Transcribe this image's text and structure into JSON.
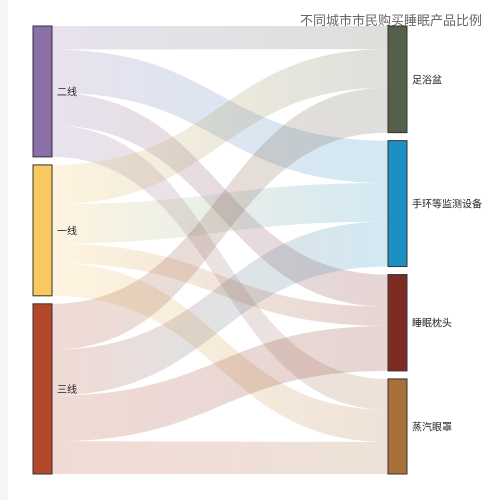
{
  "chart_data": {
    "type": "sankey",
    "title": "不同城市市民购买睡眠产品比例",
    "sources": [
      {
        "name": "二线",
        "color": "#8a6fa8"
      },
      {
        "name": "一线",
        "color": "#f9c95f"
      },
      {
        "name": "三线",
        "color": "#b5482b"
      }
    ],
    "targets": [
      {
        "name": "足浴盆",
        "color": "#55604a"
      },
      {
        "name": "手环等监测设备",
        "color": "#1e8fc2"
      },
      {
        "name": "睡眠枕头",
        "color": "#7e2c23"
      },
      {
        "name": "蒸汽眼罩",
        "color": "#a8703a"
      }
    ],
    "links": [
      {
        "source": "二线",
        "target": "足浴盆",
        "value": 18
      },
      {
        "source": "二线",
        "target": "手环等监测设备",
        "value": 33
      },
      {
        "source": "二线",
        "target": "睡眠枕头",
        "value": 25
      },
      {
        "source": "二线",
        "target": "蒸汽眼罩",
        "value": 24
      },
      {
        "source": "一线",
        "target": "足浴盆",
        "value": 30
      },
      {
        "source": "一线",
        "target": "手环等监测设备",
        "value": 30
      },
      {
        "source": "一线",
        "target": "睡眠枕头",
        "value": 15
      },
      {
        "source": "一线",
        "target": "蒸汽眼罩",
        "value": 25
      },
      {
        "source": "三线",
        "target": "足浴盆",
        "value": 35
      },
      {
        "source": "三线",
        "target": "手环等监测设备",
        "value": 35
      },
      {
        "source": "三线",
        "target": "睡眠枕头",
        "value": 35
      },
      {
        "source": "三线",
        "target": "蒸汽眼罩",
        "value": 25
      }
    ]
  }
}
